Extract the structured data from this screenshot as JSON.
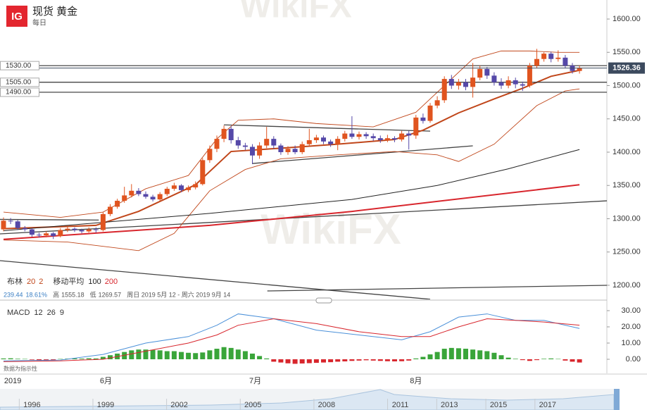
{
  "header": {
    "logo": "IG",
    "title": "现货 黄金",
    "period": "每日",
    "watermark": "WikiFX"
  },
  "legend": {
    "bollinger": "布林",
    "boll_period": "20",
    "boll_dev": "2",
    "ma": "移动平均",
    "ma_fast": "100",
    "ma_slow": "200"
  },
  "info": {
    "change": "239.44",
    "change_pct": "18.61%",
    "high_label": "高",
    "high": "1555.18",
    "low_label": "低",
    "low": "1269.57",
    "range": "周日 2019 5月 12 - 周六 2019 9月 14"
  },
  "chart_data": [
    {
      "type": "candlestick",
      "ylim": [
        1178.8,
        1628.6
      ],
      "yticks": [
        {
          "value": 1200,
          "label": "1200.00"
        },
        {
          "value": 1250,
          "label": "1250.00"
        },
        {
          "value": 1300,
          "label": "1300.00"
        },
        {
          "value": 1350,
          "label": "1350.00"
        },
        {
          "value": 1400,
          "label": "1400.00"
        },
        {
          "value": 1450,
          "label": "1450.00"
        },
        {
          "value": 1500,
          "label": "1500.00"
        },
        {
          "value": 1550,
          "label": "1550.00"
        },
        {
          "value": 1600,
          "label": "1600.00"
        }
      ],
      "up_color": "#e0541f",
      "down_color": "#5548a8",
      "ohlc": [
        [
          1284,
          1302,
          1281,
          1297
        ],
        [
          1297,
          1301,
          1292,
          1296
        ],
        [
          1296,
          1298,
          1283,
          1286
        ],
        [
          1286,
          1289,
          1281,
          1284
        ],
        [
          1284,
          1286,
          1273,
          1276
        ],
        [
          1276,
          1279,
          1272,
          1275
        ],
        [
          1275,
          1281,
          1272,
          1278
        ],
        [
          1278,
          1280,
          1269.57,
          1274
        ],
        [
          1274,
          1286,
          1272,
          1283
        ],
        [
          1283,
          1288,
          1280,
          1285
        ],
        [
          1285,
          1287,
          1280,
          1283
        ],
        [
          1283,
          1285,
          1278,
          1281
        ],
        [
          1281,
          1287,
          1279,
          1284
        ],
        [
          1284,
          1287,
          1279,
          1283
        ],
        [
          1283,
          1310,
          1281,
          1307
        ],
        [
          1307,
          1322,
          1304,
          1318
        ],
        [
          1318,
          1330,
          1315,
          1327
        ],
        [
          1327,
          1348,
          1324,
          1335
        ],
        [
          1335,
          1352,
          1332,
          1342
        ],
        [
          1342,
          1346,
          1334,
          1337
        ],
        [
          1337,
          1341,
          1330,
          1333
        ],
        [
          1333,
          1336,
          1326,
          1329
        ],
        [
          1329,
          1340,
          1327,
          1337
        ],
        [
          1337,
          1348,
          1334,
          1345
        ],
        [
          1345,
          1354,
          1342,
          1350
        ],
        [
          1350,
          1352,
          1340,
          1343
        ],
        [
          1343,
          1350,
          1340,
          1347
        ],
        [
          1347,
          1356,
          1344,
          1352
        ],
        [
          1352,
          1391,
          1350,
          1388
        ],
        [
          1388,
          1410,
          1384,
          1405
        ],
        [
          1405,
          1425,
          1400,
          1420
        ],
        [
          1420,
          1440,
          1415,
          1435
        ],
        [
          1435,
          1439,
          1413,
          1418
        ],
        [
          1418,
          1423,
          1405,
          1410
        ],
        [
          1410,
          1414,
          1403,
          1408
        ],
        [
          1408,
          1412,
          1382,
          1395
        ],
        [
          1395,
          1415,
          1390,
          1410
        ],
        [
          1410,
          1438,
          1406,
          1420
        ],
        [
          1420,
          1424,
          1405,
          1410
        ],
        [
          1410,
          1413,
          1396,
          1400
        ],
        [
          1400,
          1409,
          1396,
          1405
        ],
        [
          1405,
          1410,
          1397,
          1400
        ],
        [
          1400,
          1416,
          1397,
          1412
        ],
        [
          1412,
          1435,
          1409,
          1418
        ],
        [
          1418,
          1426,
          1414,
          1422
        ],
        [
          1422,
          1425,
          1412,
          1416
        ],
        [
          1416,
          1419,
          1408,
          1412
        ],
        [
          1412,
          1424,
          1403,
          1420
        ],
        [
          1420,
          1432,
          1416,
          1428
        ],
        [
          1428,
          1454,
          1420,
          1423
        ],
        [
          1423,
          1431,
          1419,
          1427
        ],
        [
          1427,
          1430,
          1420,
          1424
        ],
        [
          1424,
          1428,
          1417,
          1421
        ],
        [
          1421,
          1425,
          1414,
          1418
        ],
        [
          1418,
          1426,
          1415,
          1421
        ],
        [
          1421,
          1424,
          1415,
          1419
        ],
        [
          1419,
          1432,
          1416,
          1428
        ],
        [
          1428,
          1432,
          1404,
          1425
        ],
        [
          1425,
          1456,
          1420,
          1452
        ],
        [
          1452,
          1458,
          1443,
          1447
        ],
        [
          1447,
          1474,
          1444,
          1470
        ],
        [
          1470,
          1484,
          1466,
          1478
        ],
        [
          1478,
          1514,
          1474,
          1510
        ],
        [
          1510,
          1516,
          1495,
          1500
        ],
        [
          1500,
          1510,
          1494,
          1505
        ],
        [
          1505,
          1510,
          1493,
          1498
        ],
        [
          1498,
          1534,
          1482,
          1512
        ],
        [
          1512,
          1530,
          1508,
          1525
        ],
        [
          1525,
          1528,
          1510,
          1515
        ],
        [
          1515,
          1520,
          1500,
          1505
        ],
        [
          1505,
          1511,
          1495,
          1500
        ],
        [
          1500,
          1514,
          1496,
          1508
        ],
        [
          1508,
          1512,
          1496,
          1502
        ],
        [
          1502,
          1506,
          1492,
          1500
        ],
        [
          1500,
          1534,
          1497,
          1530
        ],
        [
          1530,
          1555.18,
          1526,
          1540
        ],
        [
          1540,
          1550,
          1536,
          1548
        ],
        [
          1548,
          1551,
          1535,
          1540
        ],
        [
          1540,
          1553,
          1536,
          1542
        ],
        [
          1542,
          1546,
          1526,
          1530
        ],
        [
          1530,
          1534,
          1518,
          1522
        ],
        [
          1522,
          1530,
          1518,
          1526.36
        ]
      ],
      "overlays": [
        {
          "color": "#c0461a",
          "width": 0.9,
          "x": [
            0,
            8,
            14,
            20,
            26,
            30,
            33,
            38,
            44,
            52,
            58,
            62,
            66,
            70,
            74,
            78,
            81
          ],
          "values": [
            1310,
            1302,
            1310,
            1345,
            1365,
            1420,
            1448,
            1450,
            1443,
            1438,
            1460,
            1500,
            1540,
            1552,
            1552,
            1550,
            1550
          ]
        },
        {
          "color": "#c0461a",
          "width": 2,
          "x": [
            0,
            13,
            19,
            27,
            32,
            39,
            47,
            55,
            59,
            64,
            69,
            73,
            77,
            81
          ],
          "values": [
            1285,
            1290,
            1311,
            1351,
            1401,
            1406,
            1412,
            1419,
            1433,
            1459,
            1480,
            1496,
            1514,
            1523
          ]
        },
        {
          "color": "#c0461a",
          "width": 0.9,
          "x": [
            0,
            9,
            19,
            24,
            29,
            34,
            39,
            47,
            55,
            61,
            64,
            69,
            75,
            79,
            81
          ],
          "values": [
            1268,
            1265,
            1252,
            1278,
            1342,
            1374,
            1390,
            1396,
            1401,
            1396,
            1386,
            1412,
            1470,
            1492,
            1495
          ]
        },
        {
          "color": "#222222",
          "width": 1,
          "x": [
            0,
            29,
            49,
            61,
            71,
            81
          ],
          "values": [
            1282,
            1308,
            1329,
            1350,
            1375,
            1404
          ]
        },
        {
          "color": "#d8262d",
          "width": 2,
          "x": [
            0,
            29,
            49,
            81
          ],
          "values": [
            1269,
            1290,
            1311,
            1351
          ]
        }
      ],
      "trendlines": [
        {
          "x": [
            31,
            60
          ],
          "values": [
            1441,
            1431.6
          ]
        },
        {
          "x": [
            35,
            66
          ],
          "values": [
            1383,
            1409.5
          ]
        },
        {
          "x": [
            -0.5,
            90.5
          ],
          "values": [
            1277.2,
            1330.2
          ]
        },
        {
          "x": [
            -0.5,
            13.4
          ],
          "values": [
            1299,
            1298
          ]
        },
        {
          "x": [
            -0.5,
            60
          ],
          "values": [
            1237,
            1179
          ]
        },
        {
          "x": [
            37.1,
            90.5
          ],
          "values": [
            1191.5,
            1201
          ]
        }
      ],
      "levels": [
        {
          "value": 1530,
          "label": "1530.00"
        },
        {
          "value": 1505,
          "label": "1505.00"
        },
        {
          "value": 1490,
          "label": "1490.00"
        }
      ],
      "last": {
        "value": 1526.36,
        "label": "1526.36"
      },
      "date_labels": [
        {
          "label": "2019",
          "index": 1.3
        },
        {
          "label": "6月",
          "index": 14.4
        },
        {
          "label": "7月",
          "index": 35.4
        },
        {
          "label": "8月",
          "index": 58
        }
      ]
    },
    {
      "type": "macd",
      "title": "MACD",
      "params": [
        "12",
        "26",
        "9"
      ],
      "ylim": [
        -8.7,
        33.9
      ],
      "yticks": [
        {
          "value": 0,
          "label": "0.00"
        },
        {
          "value": 10,
          "label": "10.00"
        },
        {
          "value": 20,
          "label": "20.00"
        },
        {
          "value": 30,
          "label": "30.00"
        }
      ],
      "note": "数据为指示性",
      "pos_color": "#3aa53a",
      "neg_color": "#d8262d",
      "histogram": [
        0.5,
        0.6,
        0.3,
        0.2,
        -0.3,
        -0.5,
        -0.4,
        -0.5,
        0.2,
        0.4,
        0.5,
        0.4,
        0.6,
        0.5,
        1.5,
        2.5,
        3.5,
        4.5,
        5.5,
        6,
        6,
        5.8,
        5.5,
        5,
        5,
        4.5,
        4,
        3.8,
        4.2,
        5.5,
        6.5,
        7.5,
        7,
        6,
        5,
        3.5,
        2,
        0.5,
        -1.5,
        -2,
        -2.5,
        -2.8,
        -2.6,
        -2.4,
        -2.2,
        -2,
        -1.8,
        -1.5,
        -1.3,
        -1,
        -0.8,
        -0.6,
        -0.8,
        -1,
        -1.2,
        -1.3,
        -1.2,
        -0.8,
        0.5,
        1.5,
        3,
        4.5,
        6.5,
        7,
        6.8,
        6.5,
        6,
        5.5,
        5,
        4,
        2.5,
        1,
        0.3,
        -0.5,
        -1,
        -0.5,
        0.3,
        0.5,
        0.2,
        -0.8,
        -1.5,
        -2
      ],
      "series": [
        {
          "color": "#4a90d9",
          "x": [
            0,
            8,
            14,
            20,
            26,
            30,
            33,
            38,
            44,
            50,
            56,
            60,
            64,
            68,
            72,
            76,
            81
          ],
          "values": [
            -1,
            -0.5,
            3,
            10,
            14,
            21,
            28,
            25,
            18,
            15,
            12,
            17,
            26,
            28,
            24,
            24,
            19
          ]
        },
        {
          "color": "#d8262d",
          "x": [
            0,
            8,
            14,
            20,
            26,
            30,
            33,
            38,
            44,
            50,
            56,
            60,
            64,
            68,
            72,
            76,
            81
          ],
          "values": [
            -1.5,
            -1,
            0,
            5,
            10,
            15,
            21,
            25,
            22,
            17,
            14,
            14,
            20,
            25,
            24,
            23,
            21
          ]
        }
      ]
    }
  ],
  "navigator": {
    "xlim": [
      1994.7,
      2019.7
    ],
    "years": [
      1996,
      1999,
      2002,
      2005,
      2008,
      2011,
      2013,
      2015,
      2017
    ]
  }
}
